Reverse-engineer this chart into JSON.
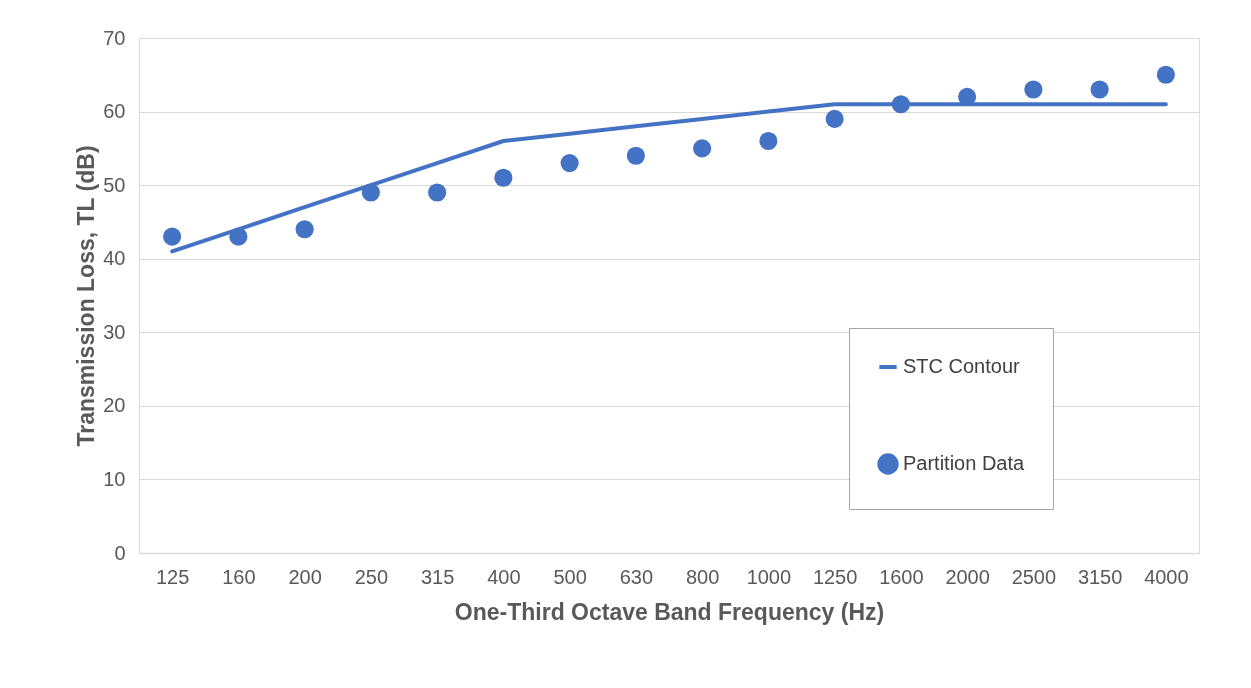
{
  "chart_data": {
    "type": "line",
    "xlabel": "One-Third Octave Band Frequency (Hz)",
    "ylabel": "Transmission Loss, TL (dB)",
    "categories": [
      "125",
      "160",
      "200",
      "250",
      "315",
      "400",
      "500",
      "630",
      "800",
      "1000",
      "1250",
      "1600",
      "2000",
      "2500",
      "3150",
      "4000"
    ],
    "series": [
      {
        "name": "STC Contour",
        "color": "#4472c4",
        "values": [
          41,
          44,
          47,
          50,
          53,
          56,
          57,
          58,
          59,
          60,
          61,
          61,
          61,
          61,
          61,
          61
        ]
      },
      {
        "name": "Partition Data",
        "type": "scatter",
        "color": "#4472c4",
        "marker": "circle",
        "values": [
          43,
          43,
          44,
          49,
          49,
          51,
          53,
          54,
          55,
          56,
          59,
          61,
          62,
          63,
          63,
          65
        ]
      }
    ],
    "ylim": [
      0,
      70
    ],
    "yticks": [
      0,
      10,
      20,
      30,
      40,
      50,
      60,
      70
    ],
    "grid": "y",
    "legend": "right"
  }
}
